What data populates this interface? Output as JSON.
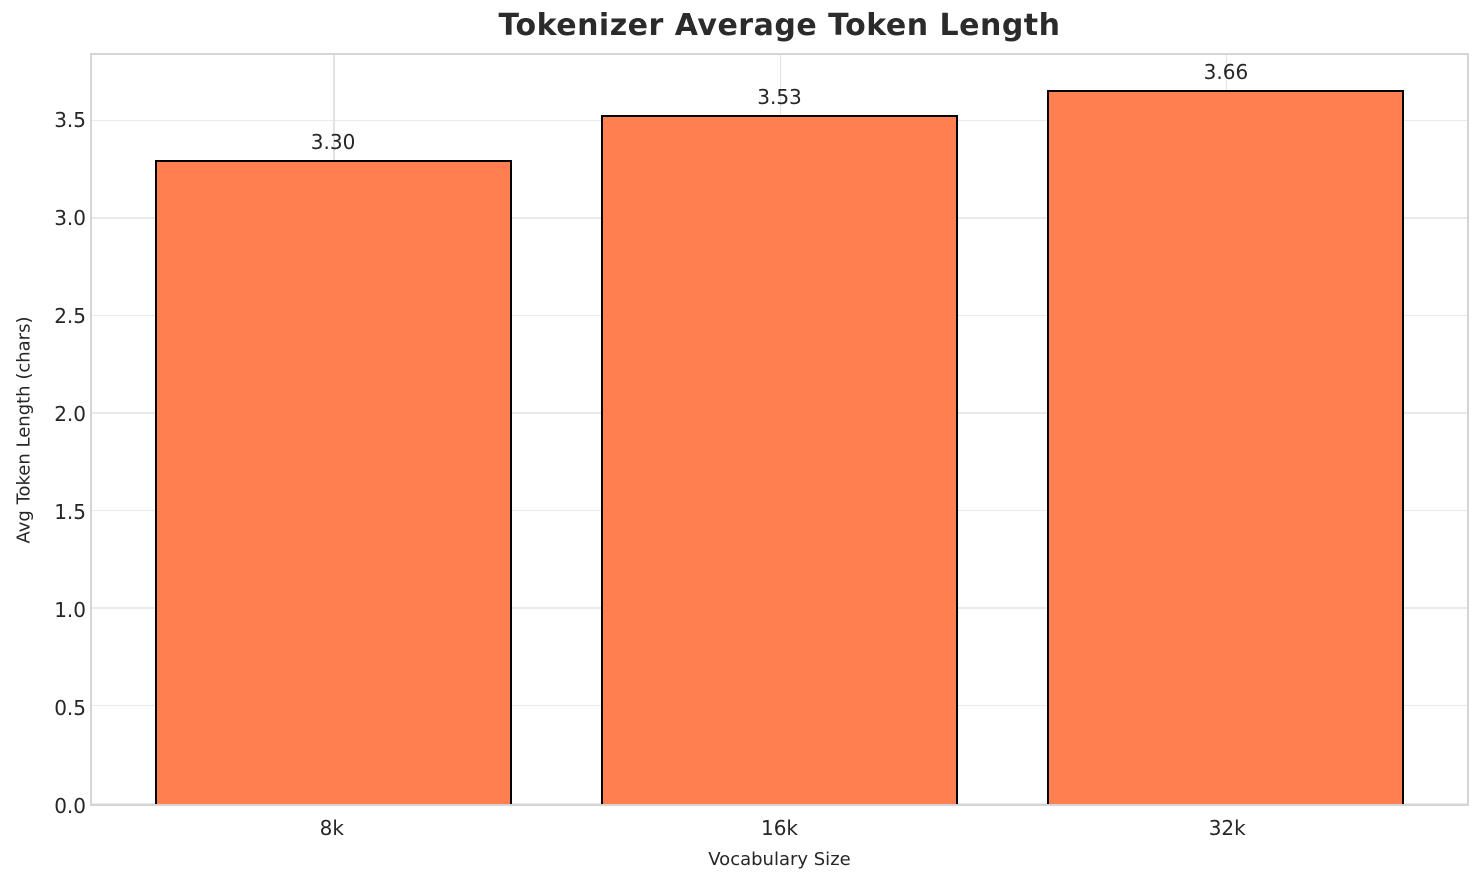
{
  "chart_data": {
    "type": "bar",
    "title": "Tokenizer Average Token Length",
    "xlabel": "Vocabulary Size",
    "ylabel": "Avg Token Length (chars)",
    "categories": [
      "8k",
      "16k",
      "32k"
    ],
    "values": [
      3.3,
      3.53,
      3.66
    ],
    "value_labels": [
      "3.30",
      "3.53",
      "3.66"
    ],
    "yticks": [
      0.0,
      0.5,
      1.0,
      1.5,
      2.0,
      2.5,
      3.0,
      3.5
    ],
    "ytick_labels": [
      "0.0",
      "0.5",
      "1.0",
      "1.5",
      "2.0",
      "2.5",
      "3.0",
      "3.5"
    ],
    "ylim": [
      0,
      3.84
    ],
    "xlim": [
      -0.54,
      2.54
    ],
    "bar_width": 0.8,
    "grid": true,
    "legend_position": "none",
    "colors": {
      "bar_fill": "#FF7F50",
      "bar_edge": "#000000",
      "grid_line": "#e9e9e9",
      "spine": "#d5d5d5",
      "text": "#262626"
    }
  }
}
